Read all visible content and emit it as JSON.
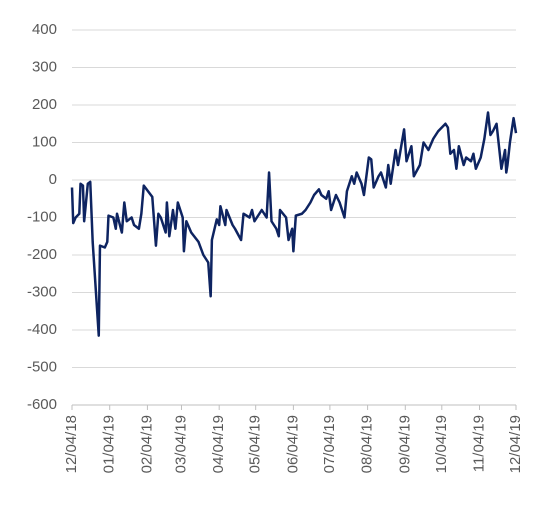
{
  "chart_data": {
    "type": "line",
    "x": [
      "12/04/18",
      "12/05/18",
      "12/07/18",
      "12/10/18",
      "12/11/18",
      "12/13/18",
      "12/14/18",
      "12/17/18",
      "12/19/18",
      "12/21/18",
      "12/26/18",
      "12/27/18",
      "12/31/18",
      "01/02/19",
      "01/03/19",
      "01/07/19",
      "01/09/19",
      "01/10/19",
      "01/14/19",
      "01/16/19",
      "01/18/19",
      "01/22/19",
      "01/24/19",
      "01/28/19",
      "01/30/19",
      "02/01/19",
      "02/08/19",
      "02/11/19",
      "02/13/19",
      "02/15/19",
      "02/19/19",
      "02/20/19",
      "02/22/19",
      "02/25/19",
      "02/27/19",
      "03/01/19",
      "03/05/19",
      "03/06/19",
      "03/08/19",
      "03/12/19",
      "03/18/19",
      "03/22/19",
      "03/26/19",
      "03/28/19",
      "03/29/19",
      "04/02/19",
      "04/04/19",
      "04/05/19",
      "04/09/19",
      "04/10/19",
      "04/15/19",
      "04/17/19",
      "04/22/19",
      "04/24/19",
      "04/29/19",
      "05/01/19",
      "05/03/19",
      "05/07/19",
      "05/09/19",
      "05/13/19",
      "05/15/19",
      "05/17/19",
      "05/21/19",
      "05/23/19",
      "05/24/19",
      "05/29/19",
      "05/31/19",
      "06/03/19",
      "06/04/19",
      "06/06/19",
      "06/11/19",
      "06/14/19",
      "06/18/19",
      "06/21/19",
      "06/25/19",
      "06/27/19",
      "07/01/19",
      "07/03/19",
      "07/05/19",
      "07/09/19",
      "07/12/19",
      "07/16/19",
      "07/18/19",
      "07/22/19",
      "07/24/19",
      "07/26/19",
      "07/30/19",
      "08/01/19",
      "08/05/19",
      "08/07/19",
      "08/09/19",
      "08/13/19",
      "08/15/19",
      "08/19/19",
      "08/21/19",
      "08/23/19",
      "08/27/19",
      "08/29/19",
      "09/03/19",
      "09/05/19",
      "09/09/19",
      "09/11/19",
      "09/16/19",
      "09/19/19",
      "09/23/19",
      "09/27/19",
      "10/01/19",
      "10/07/19",
      "10/09/19",
      "10/11/19",
      "10/14/19",
      "10/16/19",
      "10/18/19",
      "10/22/19",
      "10/24/19",
      "10/28/19",
      "10/30/19",
      "11/01/19",
      "11/05/19",
      "11/08/19",
      "11/11/19",
      "11/13/19",
      "11/15/19",
      "11/18/19",
      "11/20/19",
      "11/22/19",
      "11/25/19",
      "11/26/19",
      "11/27/19",
      "11/29/19",
      "12/02/19",
      "12/04/19"
    ],
    "series": [
      {
        "color": "#0e2461",
        "values": [
          -20,
          -115,
          -100,
          -90,
          -10,
          -15,
          -110,
          -10,
          -5,
          -165,
          -415,
          -175,
          -180,
          -165,
          -95,
          -100,
          -130,
          -90,
          -140,
          -60,
          -110,
          -100,
          -120,
          -130,
          -90,
          -15,
          -45,
          -175,
          -90,
          -100,
          -140,
          -60,
          -150,
          -80,
          -130,
          -60,
          -100,
          -190,
          -110,
          -140,
          -165,
          -200,
          -220,
          -310,
          -160,
          -105,
          -120,
          -70,
          -120,
          -80,
          -120,
          -130,
          -160,
          -90,
          -100,
          -80,
          -110,
          -90,
          -80,
          -100,
          20,
          -110,
          -130,
          -150,
          -80,
          -100,
          -160,
          -130,
          -190,
          -95,
          -90,
          -80,
          -60,
          -40,
          -25,
          -40,
          -50,
          -30,
          -80,
          -40,
          -60,
          -100,
          -30,
          10,
          -10,
          20,
          -10,
          -40,
          60,
          55,
          -20,
          10,
          20,
          -20,
          40,
          -10,
          80,
          40,
          135,
          50,
          90,
          10,
          40,
          100,
          80,
          110,
          130,
          150,
          140,
          70,
          80,
          30,
          90,
          40,
          60,
          50,
          70,
          30,
          60,
          110,
          180,
          120,
          130,
          150,
          90,
          30,
          80,
          20,
          40,
          100,
          165,
          125
        ]
      }
    ],
    "xlim": [
      "12/04/18",
      "12/04/19"
    ],
    "xticks": [
      "12/04/18",
      "01/04/19",
      "02/04/19",
      "03/04/19",
      "04/04/19",
      "05/04/19",
      "06/04/19",
      "07/04/19",
      "08/04/19",
      "09/04/19",
      "10/04/19",
      "11/04/19",
      "12/04/19"
    ],
    "ylim": [
      -600,
      400
    ],
    "yticks": [
      -600,
      -500,
      -400,
      -300,
      -200,
      -100,
      0,
      100,
      200,
      300,
      400
    ],
    "grid": true
  }
}
